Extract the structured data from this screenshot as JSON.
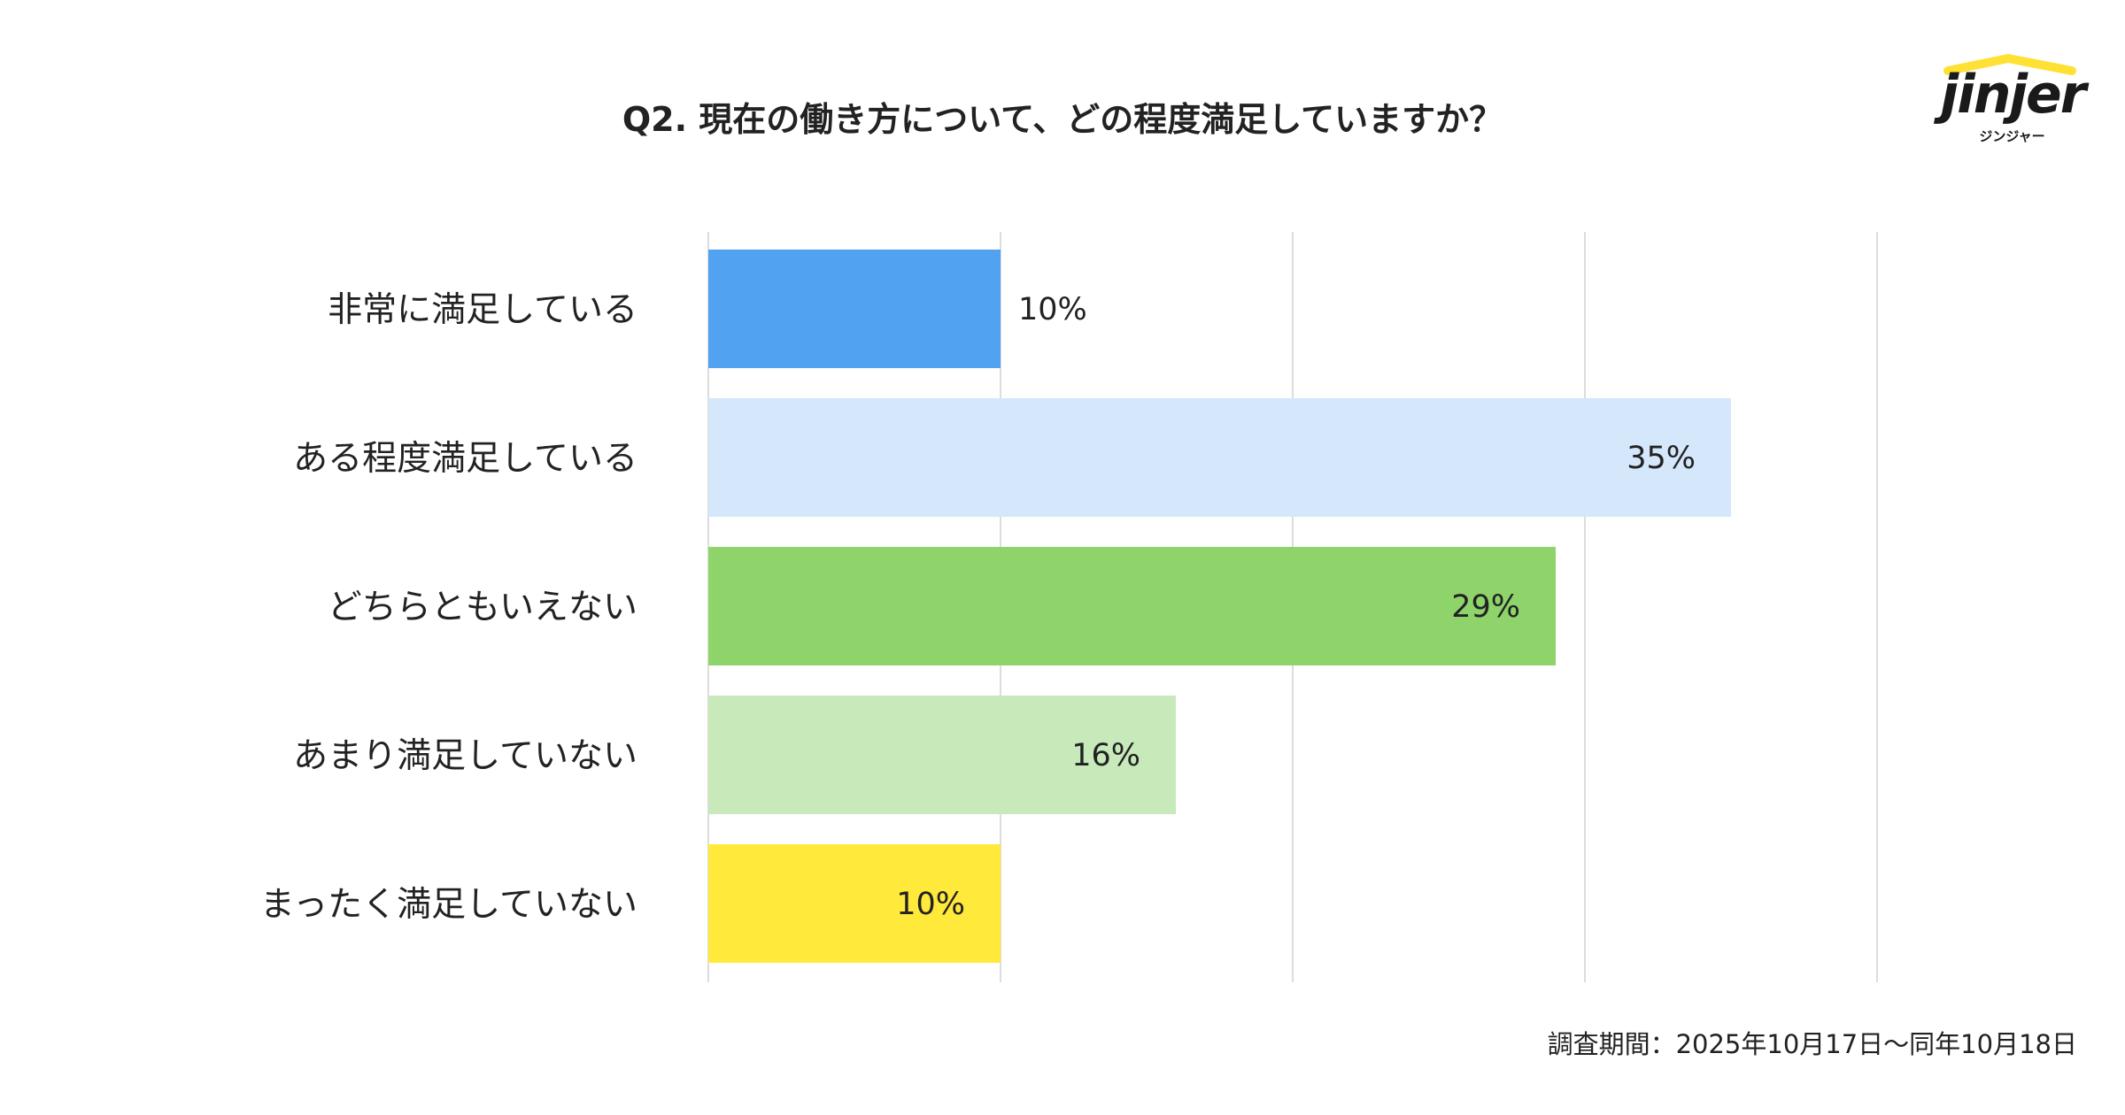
{
  "title": "Q2. 現在の働き方について、どの程度満足していますか？",
  "logo": {
    "wordmark": "jinjer",
    "kana": "ジンジャー",
    "accent_color": "#FFE135"
  },
  "footnote": "調査期間：2025年10月17日〜同年10月18日",
  "chart_data": {
    "type": "bar",
    "orientation": "horizontal",
    "title": "Q2. 現在の働き方について、どの程度満足していますか？",
    "categories": [
      "非常に満足している",
      "ある程度満足している",
      "どちらともいえない",
      "あまり満足していない",
      "まったく満足していない"
    ],
    "values": [
      10,
      35,
      29,
      16,
      10
    ],
    "data_labels": [
      "10%",
      "35%",
      "29%",
      "16%",
      "10%"
    ],
    "colors": [
      "#52A2F2",
      "#D4E7FB",
      "#8ED46A",
      "#C8E9BA",
      "#FFE93A"
    ],
    "unit": "%",
    "xlim": [
      0,
      40
    ],
    "grid": true,
    "legend": false
  }
}
